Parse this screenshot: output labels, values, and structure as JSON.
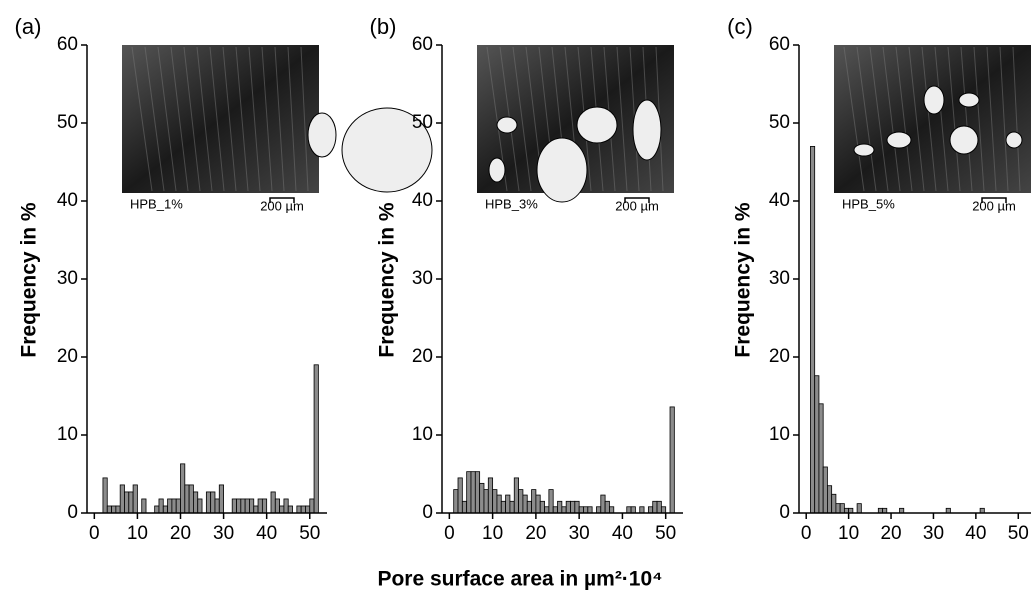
{
  "xlabel": "Pore surface area in µm²·10⁴",
  "chart_data": [
    {
      "type": "histogram",
      "panel": "(a)",
      "ylabel": "Frequency in %",
      "inset_label": "HPB_1%",
      "scale_label": "200 µm",
      "color": "#8c8c8c",
      "bins": [
        0,
        1,
        2,
        3,
        4,
        5,
        6,
        7,
        8,
        9,
        10,
        11,
        12,
        13,
        14,
        15,
        16,
        17,
        18,
        19,
        20,
        21,
        22,
        23,
        24,
        25,
        26,
        27,
        28,
        29,
        30,
        31,
        32,
        33,
        34,
        35,
        36,
        37,
        38,
        39,
        40,
        41,
        42,
        43,
        44,
        45,
        46,
        47,
        48,
        49,
        50,
        51,
        52
      ],
      "values": [
        0,
        0,
        4.5,
        0.9,
        0.9,
        0.9,
        3.6,
        2.7,
        2.7,
        3.6,
        0,
        1.8,
        0,
        0,
        0.9,
        1.8,
        0.9,
        1.8,
        1.8,
        1.8,
        6.3,
        3.6,
        3.6,
        2.7,
        1.8,
        0,
        2.7,
        2.7,
        1.8,
        3.6,
        0,
        0,
        1.8,
        1.8,
        1.8,
        1.8,
        1.8,
        0.9,
        1.8,
        1.8,
        0,
        2.7,
        1.8,
        0.9,
        1.8,
        0.9,
        0,
        0.9,
        0.9,
        0.9,
        1.8,
        19
      ],
      "xlim": [
        -1.7,
        54
      ],
      "ylim": [
        0,
        60
      ],
      "xticks": [
        0,
        10,
        20,
        30,
        40,
        50
      ],
      "yticks": [
        0,
        10,
        20,
        30,
        40,
        50,
        60
      ]
    },
    {
      "type": "histogram",
      "panel": "(b)",
      "ylabel": "Frequency in %",
      "inset_label": "HPB_3%",
      "scale_label": "200 µm",
      "color": "#8c8c8c",
      "bins": [
        0,
        1,
        2,
        3,
        4,
        5,
        6,
        7,
        8,
        9,
        10,
        11,
        12,
        13,
        14,
        15,
        16,
        17,
        18,
        19,
        20,
        21,
        22,
        23,
        24,
        25,
        26,
        27,
        28,
        29,
        30,
        31,
        32,
        33,
        34,
        35,
        36,
        37,
        38,
        39,
        40,
        41,
        42,
        43,
        44,
        45,
        46,
        47,
        48,
        49,
        50,
        51,
        52
      ],
      "values": [
        0,
        3,
        4.5,
        1.5,
        5.3,
        5.3,
        5.3,
        3.8,
        3,
        4.5,
        3,
        2.3,
        1.5,
        2.3,
        1.5,
        4.5,
        3,
        2.3,
        1.5,
        3,
        2.3,
        1.5,
        0.8,
        3,
        0.8,
        1.5,
        0.8,
        1.5,
        1.5,
        1.5,
        0.8,
        0.8,
        0.8,
        0,
        0.8,
        2.3,
        1.5,
        0.8,
        0,
        0,
        0,
        0.8,
        0.8,
        0,
        0.8,
        0,
        0.8,
        1.5,
        1.5,
        0.8,
        0,
        13.6
      ],
      "xlim": [
        -1.7,
        54
      ],
      "ylim": [
        0,
        60
      ],
      "xticks": [
        0,
        10,
        20,
        30,
        40,
        50
      ],
      "yticks": [
        0,
        10,
        20,
        30,
        40,
        50,
        60
      ]
    },
    {
      "type": "histogram",
      "panel": "(c)",
      "ylabel": "Frequency in %",
      "inset_label": "HPB_5%",
      "scale_label": "200 µm",
      "color": "#8c8c8c",
      "bins": [
        0,
        1,
        2,
        3,
        4,
        5,
        6,
        7,
        8,
        9,
        10,
        11,
        12,
        13,
        14,
        15,
        16,
        17,
        18,
        19,
        20,
        21,
        22,
        23,
        24,
        25,
        26,
        27,
        28,
        29,
        30,
        31,
        32,
        33,
        34,
        35,
        36,
        37,
        38,
        39,
        40,
        41,
        42,
        43,
        44,
        45,
        46,
        47,
        48,
        49,
        50,
        51,
        52
      ],
      "values": [
        0,
        47,
        17.6,
        14,
        5.9,
        3.5,
        2.4,
        1.2,
        1.2,
        0.6,
        0.6,
        0,
        1.2,
        0,
        0,
        0,
        0,
        0.6,
        0.6,
        0,
        0,
        0,
        0.6,
        0,
        0,
        0,
        0,
        0,
        0,
        0,
        0,
        0,
        0,
        0.6,
        0,
        0,
        0,
        0,
        0,
        0,
        0,
        0.6,
        0,
        0,
        0,
        0,
        0,
        0,
        0,
        0,
        0,
        0
      ],
      "xlim": [
        -1.7,
        53
      ],
      "ylim": [
        0,
        60
      ],
      "xticks": [
        0,
        10,
        20,
        30,
        40,
        50
      ],
      "yticks": [
        0,
        10,
        20,
        30,
        40,
        50,
        60
      ]
    }
  ]
}
